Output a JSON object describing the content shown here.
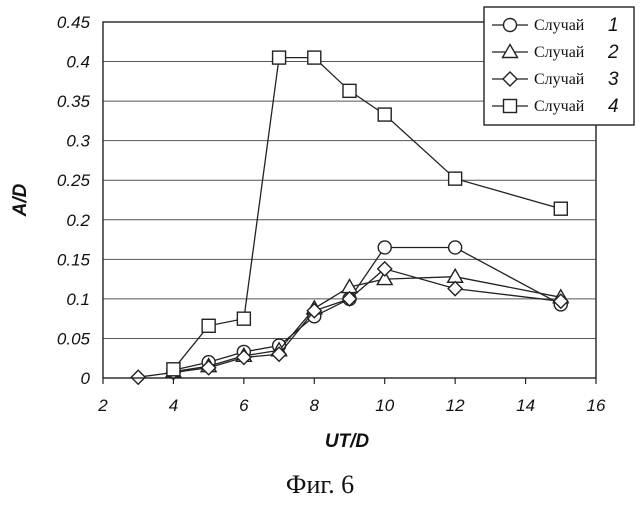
{
  "chart_data": {
    "type": "line",
    "xlabel": "UT/D",
    "ylabel": "A/D",
    "xlim": [
      2,
      16
    ],
    "ylim": [
      0,
      0.45
    ],
    "xticks": [
      "2",
      "4",
      "6",
      "8",
      "10",
      "12",
      "14",
      "16"
    ],
    "yticks": [
      "0",
      "0.05",
      "0.1",
      "0.15",
      "0.2",
      "0.25",
      "0.3",
      "0.35",
      "0.4",
      "0.45"
    ],
    "grid": "horizontal",
    "legend": "top-right",
    "series": [
      {
        "name": "Случай",
        "number": "1",
        "marker": "circle",
        "points": [
          [
            4,
            0.01
          ],
          [
            5,
            0.02
          ],
          [
            6,
            0.033
          ],
          [
            7,
            0.041
          ],
          [
            8,
            0.078
          ],
          [
            9,
            0.1
          ],
          [
            10,
            0.165
          ],
          [
            12,
            0.165
          ],
          [
            15,
            0.093
          ]
        ]
      },
      {
        "name": "Случай",
        "number": "2",
        "marker": "triangle",
        "points": [
          [
            4,
            0.008
          ],
          [
            5,
            0.015
          ],
          [
            6,
            0.028
          ],
          [
            7,
            0.035
          ],
          [
            8,
            0.088
          ],
          [
            9,
            0.115
          ],
          [
            10,
            0.125
          ],
          [
            12,
            0.128
          ],
          [
            15,
            0.102
          ]
        ]
      },
      {
        "name": "Случай",
        "number": "3",
        "marker": "diamond",
        "points": [
          [
            3,
            0.001
          ],
          [
            4,
            0.007
          ],
          [
            5,
            0.013
          ],
          [
            6,
            0.026
          ],
          [
            7,
            0.03
          ],
          [
            8,
            0.085
          ],
          [
            9,
            0.1
          ],
          [
            10,
            0.138
          ],
          [
            12,
            0.113
          ],
          [
            15,
            0.097
          ]
        ]
      },
      {
        "name": "Случай",
        "number": "4",
        "marker": "square",
        "points": [
          [
            4,
            0.011
          ],
          [
            5,
            0.066
          ],
          [
            6,
            0.075
          ],
          [
            7,
            0.405
          ],
          [
            8,
            0.405
          ],
          [
            9,
            0.363
          ],
          [
            10,
            0.333
          ],
          [
            12,
            0.252
          ],
          [
            15,
            0.214
          ]
        ]
      }
    ]
  },
  "caption": "Фиг. 6"
}
